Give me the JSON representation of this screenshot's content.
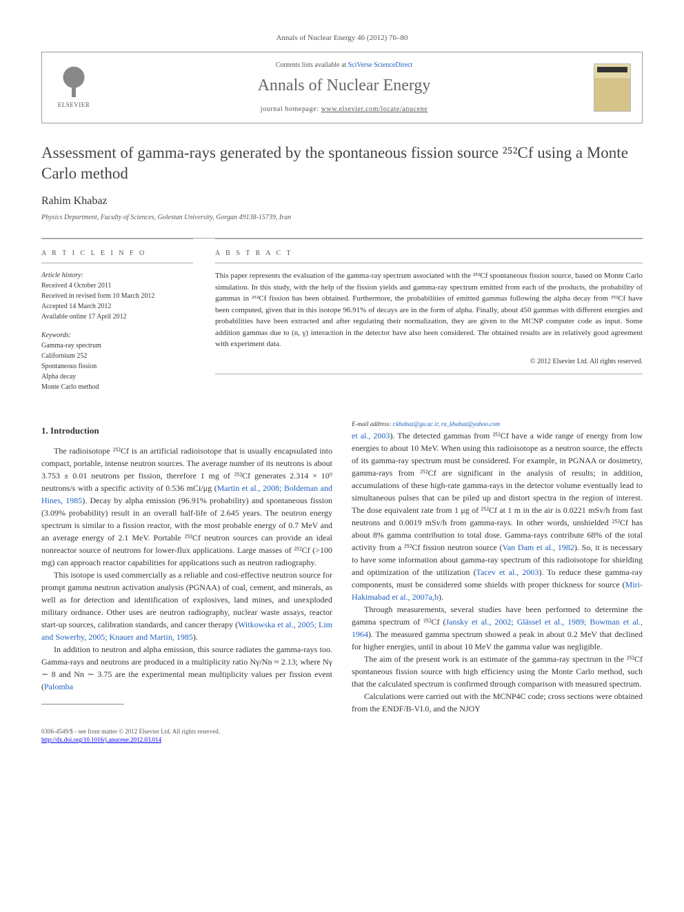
{
  "citation": "Annals of Nuclear Energy 46 (2012) 76–80",
  "header": {
    "contents_prefix": "Contents lists available at ",
    "contents_link": "SciVerse ScienceDirect",
    "journal": "Annals of Nuclear Energy",
    "homepage_prefix": "journal homepage: ",
    "homepage_url": "www.elsevier.com/locate/anucene",
    "publisher_label": "ELSEVIER"
  },
  "title": "Assessment of gamma-rays generated by the spontaneous fission source ²⁵²Cf using a Monte Carlo method",
  "author": "Rahim Khabaz",
  "affiliation": "Physics Department, Faculty of Sciences, Golestan University, Gorgan 49138-15739, Iran",
  "article_info": {
    "heading": "A R T I C L E   I N F O",
    "history_label": "Article history:",
    "history": [
      "Received 4 October 2011",
      "Received in revised form 10 March 2012",
      "Accepted 14 March 2012",
      "Available online 17 April 2012"
    ],
    "keywords_label": "Keywords:",
    "keywords": [
      "Gamma-ray spectrum",
      "Californium 252",
      "Spontaneous fission",
      "Alpha decay",
      "Monte Carlo method"
    ]
  },
  "abstract": {
    "heading": "A B S T R A C T",
    "text": "This paper represents the evaluation of the gamma-ray spectrum associated with the ²⁵²Cf spontaneous fission source, based on Monte Carlo simulation. In this study, with the help of the fission yields and gamma-ray spectrum emitted from each of the products, the probability of gammas in ²⁵²Cf fission has been obtained. Furthermore, the probabilities of emitted gammas following the alpha decay from ²⁵²Cf have been computed, given that in this isotope 96.91% of decays are in the form of alpha. Finally, about 450 gammas with different energies and probabilities have been extracted and after regulating their normalization, they are given to the MCNP computer code as input. Some addition gammas due to (n, γ) interaction in the detector have also been considered. The obtained results are in relatively good agreement with experiment data.",
    "copyright": "© 2012 Elsevier Ltd. All rights reserved."
  },
  "body": {
    "section1_heading": "1. Introduction",
    "p1a": "The radioisotope ²⁵²Cf is an artificial radioisotope that is usually encapsulated into compact, portable, intense neutron sources. The average number of its neutrons is about 3.753 ± 0.01 neutrons per fission, therefore 1 mg of ²⁵²Cf generates 2.314 × 10⁹ neutrons/s with a specific activity of 0.536 mCi/μg (",
    "p1_ref1": "Martin et al., 2008; Boldeman and Hines, 1985",
    "p1b": "). Decay by alpha emission (96.91% probability) and spontaneous fission (3.09% probability) result in an overall half-life of 2.645 years. The neutron energy spectrum is similar to a fission reactor, with the most probable energy of 0.7 MeV and an average energy of 2.1 MeV. Portable ²⁵²Cf neutron sources can provide an ideal nonreactor source of neutrons for lower-flux applications. Large masses of ²⁵²Cf (>100 mg) can approach reactor capabilities for applications such as neutron radiography.",
    "p2a": "This isotope is used commercially as a reliable and cost-effective neutron source for prompt gamma neutron activation analysis (PGNAA) of coal, cement, and minerals, as well as for detection and identification of explosives, land mines, and unexploded military ordnance. Other uses are neutron radiography, nuclear waste assays, reactor start-up sources, calibration standards, and cancer therapy (",
    "p2_ref1": "Witkowska et al., 2005; Lim and Sowerby, 2005; Knauer and Martin, 1985",
    "p2b": ").",
    "p3a": "In addition to neutron and alpha emission, this source radiates the gamma-rays too. Gamma-rays and neutrons are produced in a multiplicity ratio Nγ/Nn ≈ 2.13; where Nγ ∼ 8 and Nn ∼ 3.75 are the experimental mean multiplicity values per fission event (",
    "p3_ref1": "Palomba",
    "p3_ref1b": "et al., 2003",
    "p3b": "). The detected gammas from ²⁵²Cf have a wide range of energy from low energies to about 10 MeV. When using this radioisotope as a neutron source, the effects of its gamma-ray spectrum must be considered. For example, in PGNAA or dosimetry, gamma-rays from ²⁵²Cf are significant in the analysis of results; in addition, accumulations of these high-rate gamma-rays in the detector volume eventually lead to simultaneous pulses that can be piled up and distort spectra in the region of interest. The dose equivalent rate from 1 μg of ²⁵²Cf at 1 m in the air is 0.0221 mSv/h from fast neutrons and 0.0019 mSv/h from gamma-rays. In other words, unshielded ²⁵²Cf has about 8% gamma contribution to total dose. Gamma-rays contribute 68% of the total activity from a ²⁵²Cf fission neutron source (",
    "p3_ref2": "Van Dam et al., 1982",
    "p3c": "). So, it is necessary to have some information about gamma-ray spectrum of this radioisotope for shielding and optimization of the utilization (",
    "p3_ref3": "Tacev et al., 2003",
    "p3d": "). To reduce these gamma-ray components, must be considered some shields with proper thickness for source (",
    "p3_ref4": "Miri-Hakimabad et al., 2007a,b",
    "p3e": ").",
    "p4a": "Through measurements, several studies have been performed to determine the gamma spectrum of ²⁵²Cf (",
    "p4_ref1": "Jansky et al., 2002; Glässel et al., 1989; Bowman et al., 1964",
    "p4b": "). The measured gamma spectrum showed a peak in about 0.2 MeV that declined for higher energies, until in about 10 MeV the gamma value was negligible.",
    "p5": "The aim of the present work is an estimate of the gamma-ray spectrum in the ²⁵²Cf spontaneous fission source with high efficiency using the Monte Carlo method, such that the calculated spectrum is confirmed through comparison with measured spectrum.",
    "p6": "Calculations were carried out with the MCNP4C code; cross sections were obtained from the ENDF/B-VI.0, and the NJOY"
  },
  "footnote": {
    "label": "E-mail address: ",
    "emails": "r.khabaz@gu.ac.ir, ra_khabaz@yahoo.com"
  },
  "footer": {
    "issn": "0306-4549/$ - see front matter © 2012 Elsevier Ltd. All rights reserved.",
    "doi": "http://dx.doi.org/10.1016/j.anucene.2012.03.014"
  },
  "colors": {
    "link": "#2060c0",
    "rule": "#aaa",
    "text": "#333",
    "muted": "#555"
  }
}
